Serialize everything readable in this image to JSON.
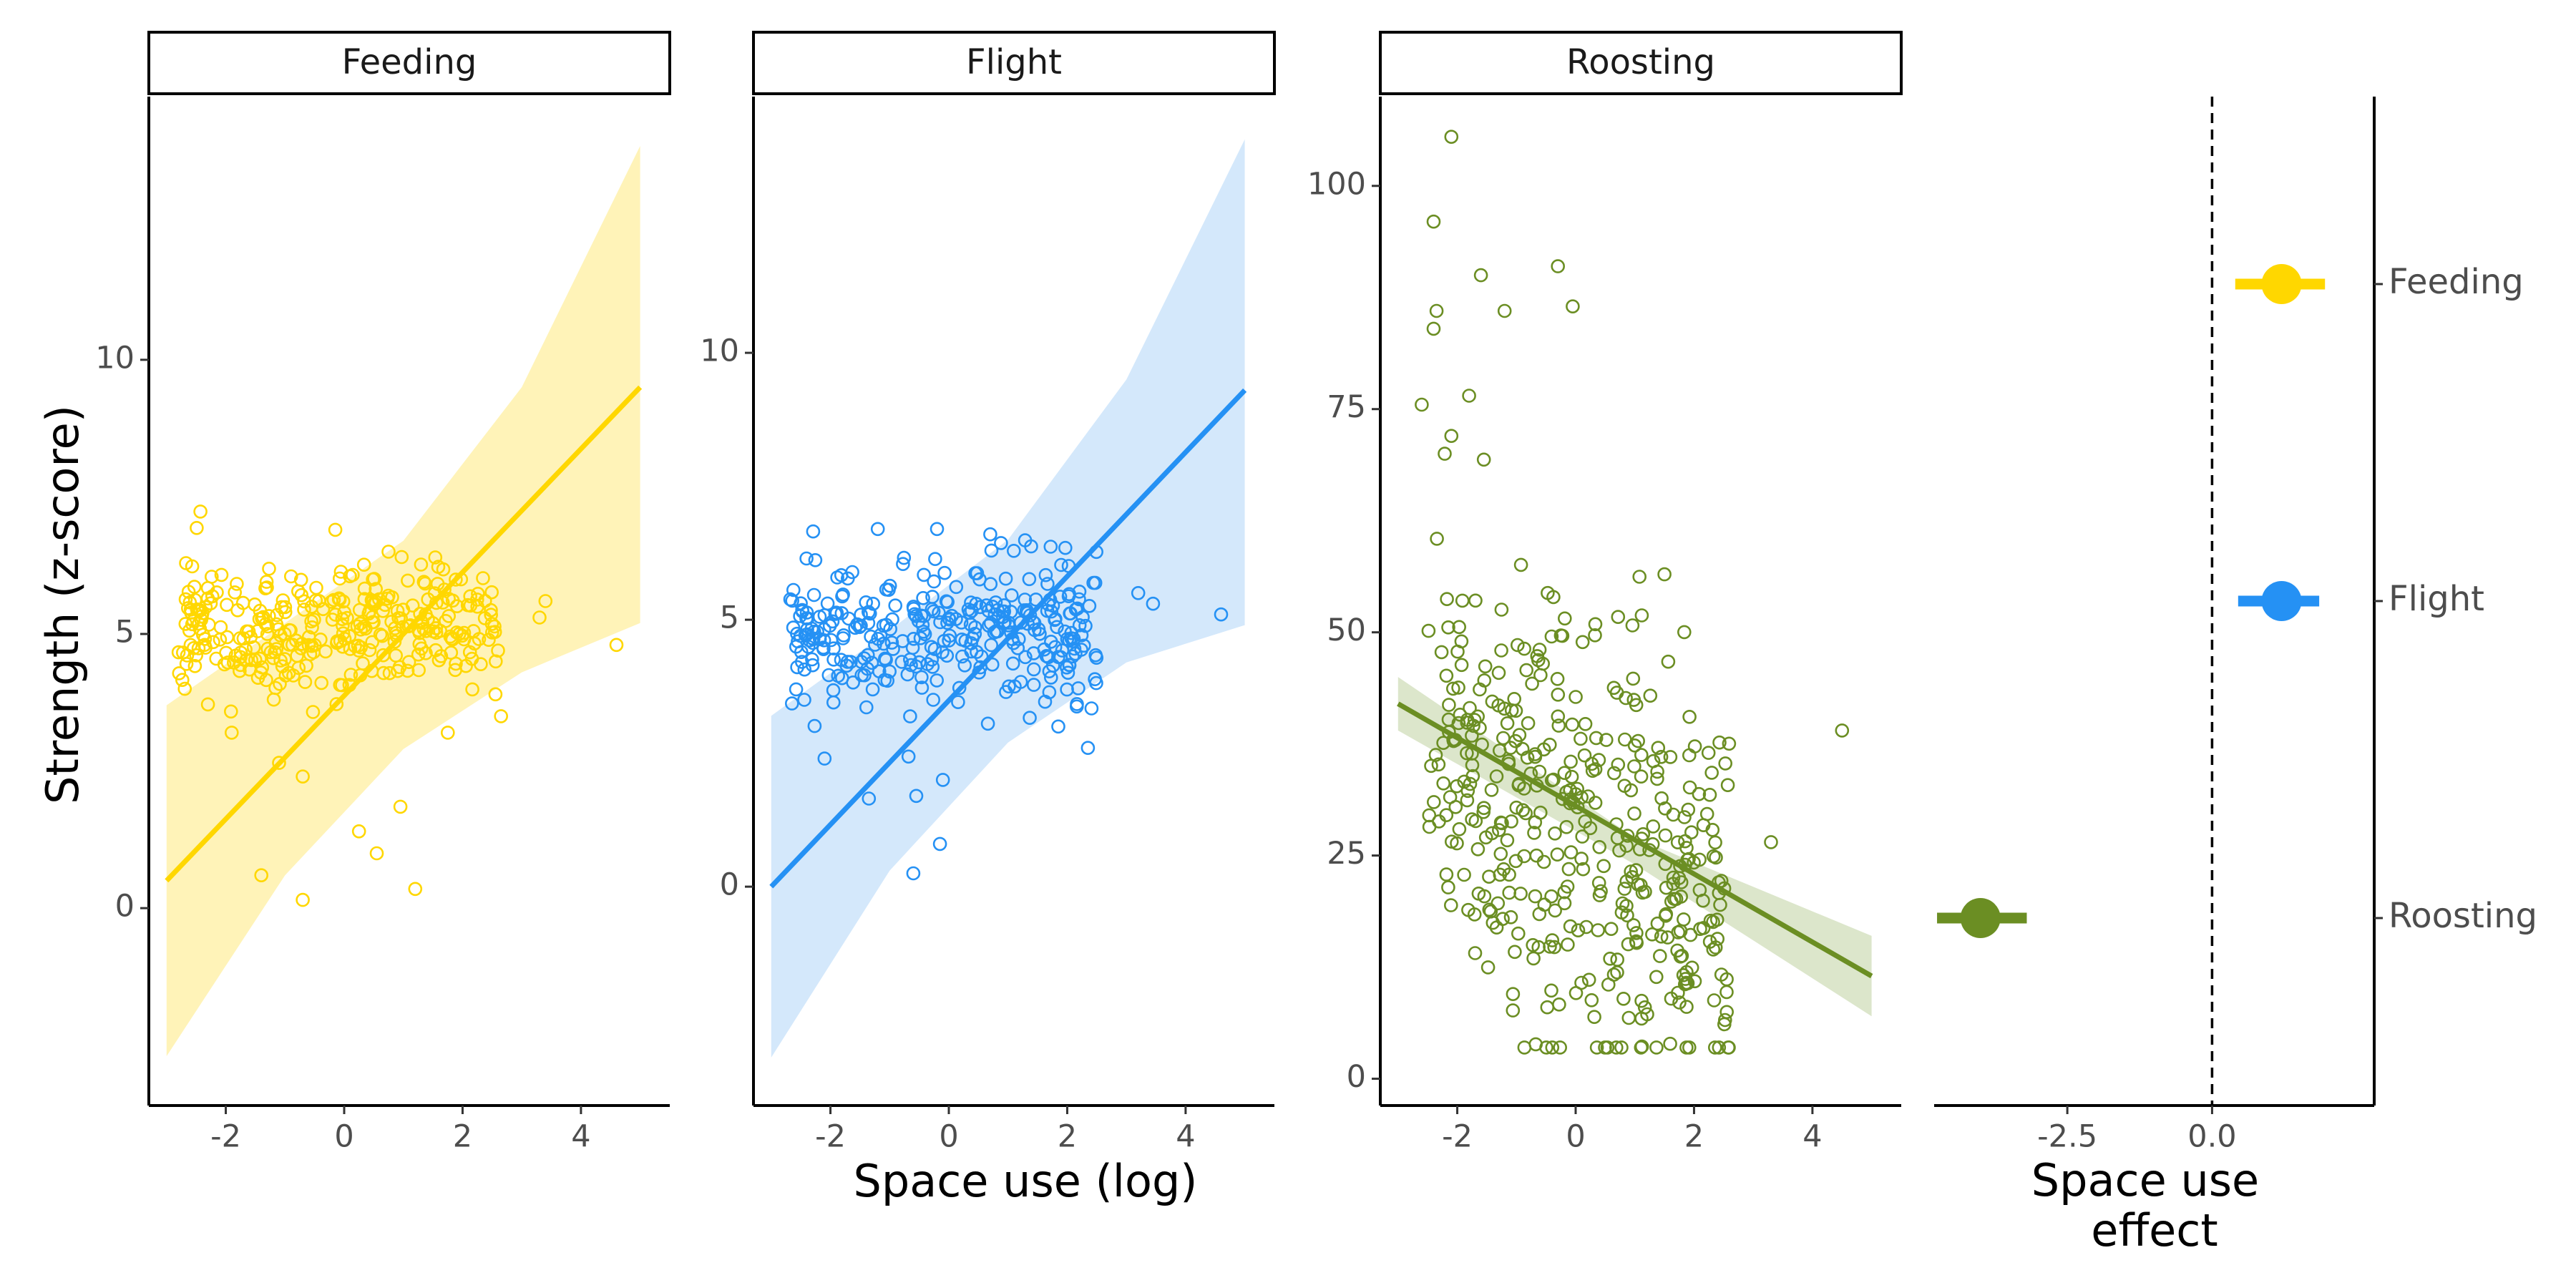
{
  "figure": {
    "y_axis_title": "Strength (z-score)",
    "x_axis_title": "Space use (log)",
    "effect_axis_title_line1": "Space use",
    "effect_axis_title_line2": "effect"
  },
  "chart_data": [
    {
      "type": "scatter",
      "panel": "Feeding",
      "color": "#FFD700",
      "band_color": "#FFF3B8",
      "xlim": [
        -3.3,
        5.5
      ],
      "ylim": [
        -3.6,
        14.8
      ],
      "x_ticks": [
        -2,
        0,
        2,
        4
      ],
      "x_tick_labels": [
        "-2",
        "0",
        "2",
        "4"
      ],
      "y_ticks": [
        0,
        5,
        10
      ],
      "y_tick_labels": [
        "0",
        "5",
        "10"
      ],
      "fit": {
        "x": [
          -3,
          5
        ],
        "y": [
          0.5,
          9.5
        ]
      },
      "ribbon": {
        "x": [
          -3,
          -1,
          1,
          3,
          5
        ],
        "lower": [
          -2.7,
          0.6,
          2.9,
          4.3,
          5.2
        ],
        "upper": [
          3.7,
          5.2,
          6.7,
          9.5,
          13.9
        ]
      },
      "cluster": {
        "n": 330,
        "x_range": [
          -2.8,
          2.6
        ],
        "y_center": 5.1,
        "y_spread": 0.6,
        "seed": 11
      },
      "outliers": [
        {
          "x": -1.4,
          "y": 0.6
        },
        {
          "x": -0.7,
          "y": 0.15
        },
        {
          "x": 0.25,
          "y": 1.4
        },
        {
          "x": 0.55,
          "y": 1.0
        },
        {
          "x": 0.95,
          "y": 1.85
        },
        {
          "x": 1.2,
          "y": 0.35
        },
        {
          "x": -0.7,
          "y": 2.4
        },
        {
          "x": -1.9,
          "y": 3.2
        },
        {
          "x": -1.1,
          "y": 2.65
        },
        {
          "x": 1.75,
          "y": 3.2
        },
        {
          "x": 2.65,
          "y": 3.5
        },
        {
          "x": 3.4,
          "y": 5.6
        },
        {
          "x": 3.3,
          "y": 5.3
        },
        {
          "x": 4.6,
          "y": 4.8
        },
        {
          "x": -0.15,
          "y": 6.9
        },
        {
          "x": 0.75,
          "y": 6.5
        }
      ]
    },
    {
      "type": "scatter",
      "panel": "Flight",
      "color": "#2591F4",
      "band_color": "#D4E8FB",
      "xlim": [
        -3.3,
        5.5
      ],
      "ylim": [
        -4.1,
        14.8
      ],
      "x_ticks": [
        -2,
        0,
        2,
        4
      ],
      "x_tick_labels": [
        "-2",
        "0",
        "2",
        "4"
      ],
      "y_ticks": [
        0,
        5,
        10
      ],
      "y_tick_labels": [
        "0",
        "5",
        "10"
      ],
      "fit": {
        "x": [
          -3,
          5
        ],
        "y": [
          0.0,
          9.3
        ]
      },
      "ribbon": {
        "x": [
          -3,
          -1,
          1,
          3,
          5
        ],
        "lower": [
          -3.2,
          0.3,
          2.7,
          4.2,
          4.9
        ],
        "upper": [
          3.2,
          4.8,
          6.5,
          9.5,
          14.0
        ]
      },
      "cluster": {
        "n": 330,
        "x_range": [
          -2.7,
          2.5
        ],
        "y_center": 4.8,
        "y_spread": 0.65,
        "seed": 23
      },
      "outliers": [
        {
          "x": -0.6,
          "y": 0.25
        },
        {
          "x": -0.15,
          "y": 0.8
        },
        {
          "x": -0.1,
          "y": 2.0
        },
        {
          "x": -0.55,
          "y": 1.7
        },
        {
          "x": -2.1,
          "y": 2.4
        },
        {
          "x": -1.35,
          "y": 1.65
        },
        {
          "x": 2.35,
          "y": 2.6
        },
        {
          "x": 1.85,
          "y": 3.0
        },
        {
          "x": 3.2,
          "y": 5.5
        },
        {
          "x": 3.45,
          "y": 5.3
        },
        {
          "x": 4.6,
          "y": 5.1
        },
        {
          "x": -1.2,
          "y": 6.7
        },
        {
          "x": 0.7,
          "y": 6.6
        },
        {
          "x": -0.2,
          "y": 6.7
        }
      ]
    },
    {
      "type": "scatter",
      "panel": "Roosting",
      "color": "#6B8E23",
      "band_color": "#DCE6CB",
      "xlim": [
        -3.3,
        5.5
      ],
      "ylim": [
        -3,
        110
      ],
      "x_ticks": [
        -2,
        0,
        2,
        4
      ],
      "x_tick_labels": [
        "-2",
        "0",
        "2",
        "4"
      ],
      "y_ticks": [
        0,
        25,
        50,
        75,
        100
      ],
      "y_tick_labels": [
        "0",
        "25",
        "50",
        "75",
        "100"
      ],
      "fit": {
        "x": [
          -3,
          5
        ],
        "y": [
          42,
          11.5
        ]
      },
      "ribbon": {
        "x": [
          -3,
          1,
          5
        ],
        "lower": [
          39,
          24,
          7
        ],
        "upper": [
          45,
          27,
          16
        ]
      },
      "cluster": {
        "n": 420,
        "x_range": [
          -2.5,
          2.6
        ],
        "y_center": 27,
        "y_spread": 12,
        "y_slope": -3.8,
        "y_min": 3.5,
        "y_max": 70,
        "seed": 37
      },
      "outliers": [
        {
          "x": -2.1,
          "y": 105.5
        },
        {
          "x": -2.4,
          "y": 96
        },
        {
          "x": -0.3,
          "y": 91
        },
        {
          "x": -1.6,
          "y": 90
        },
        {
          "x": -0.05,
          "y": 86.5
        },
        {
          "x": -1.2,
          "y": 86
        },
        {
          "x": -2.35,
          "y": 86
        },
        {
          "x": -2.4,
          "y": 84
        },
        {
          "x": -1.8,
          "y": 76.5
        },
        {
          "x": -2.6,
          "y": 75.5
        },
        {
          "x": -2.1,
          "y": 72
        },
        {
          "x": 4.5,
          "y": 39
        },
        {
          "x": 3.3,
          "y": 26.5
        },
        {
          "x": 1.5,
          "y": 56.5
        }
      ]
    },
    {
      "type": "dot-and-whisker",
      "panel": "effect",
      "xlim": [
        -4.8,
        2.8
      ],
      "x_ticks": [
        -2.5,
        0.0
      ],
      "x_tick_labels": [
        "-2.5",
        "0.0"
      ],
      "reference_x": 0.0,
      "categories": [
        "Feeding",
        "Flight",
        "Roosting"
      ],
      "estimates": [
        {
          "label": "Feeding",
          "value": 1.2,
          "low": 0.4,
          "high": 1.95,
          "color": "#FFD700"
        },
        {
          "label": "Flight",
          "value": 1.2,
          "low": 0.45,
          "high": 1.85,
          "color": "#2591F4"
        },
        {
          "label": "Roosting",
          "value": -4.0,
          "low": -4.75,
          "high": -3.2,
          "color": "#6B8E23"
        }
      ]
    }
  ]
}
